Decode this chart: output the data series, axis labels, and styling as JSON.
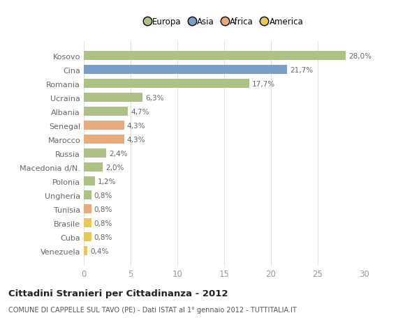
{
  "countries": [
    "Kosovo",
    "Cina",
    "Romania",
    "Ucraina",
    "Albania",
    "Senegal",
    "Marocco",
    "Russia",
    "Macedonia d/N.",
    "Polonia",
    "Ungheria",
    "Tunisia",
    "Brasile",
    "Cuba",
    "Venezuela"
  ],
  "values": [
    28.0,
    21.7,
    17.7,
    6.3,
    4.7,
    4.3,
    4.3,
    2.4,
    2.0,
    1.2,
    0.8,
    0.8,
    0.8,
    0.8,
    0.4
  ],
  "labels": [
    "28,0%",
    "21,7%",
    "17,7%",
    "6,3%",
    "4,7%",
    "4,3%",
    "4,3%",
    "2,4%",
    "2,0%",
    "1,2%",
    "0,8%",
    "0,8%",
    "0,8%",
    "0,8%",
    "0,4%"
  ],
  "colors": [
    "#adc185",
    "#7b9ec9",
    "#adc185",
    "#adc185",
    "#adc185",
    "#e8aa7a",
    "#e8aa7a",
    "#adc185",
    "#adc185",
    "#adc185",
    "#adc185",
    "#e8aa7a",
    "#e8c857",
    "#e8c857",
    "#e8c857"
  ],
  "legend_labels": [
    "Europa",
    "Asia",
    "Africa",
    "America"
  ],
  "legend_colors": [
    "#adc185",
    "#7b9ec9",
    "#e8aa7a",
    "#e8c857"
  ],
  "title": "Cittadini Stranieri per Cittadinanza - 2012",
  "subtitle": "COMUNE DI CAPPELLE SUL TAVO (PE) - Dati ISTAT al 1° gennaio 2012 - TUTTITALIA.IT",
  "xlim": [
    0,
    30
  ],
  "xticks": [
    0,
    5,
    10,
    15,
    20,
    25,
    30
  ],
  "background_color": "#ffffff",
  "grid_color": "#e0e0e0"
}
